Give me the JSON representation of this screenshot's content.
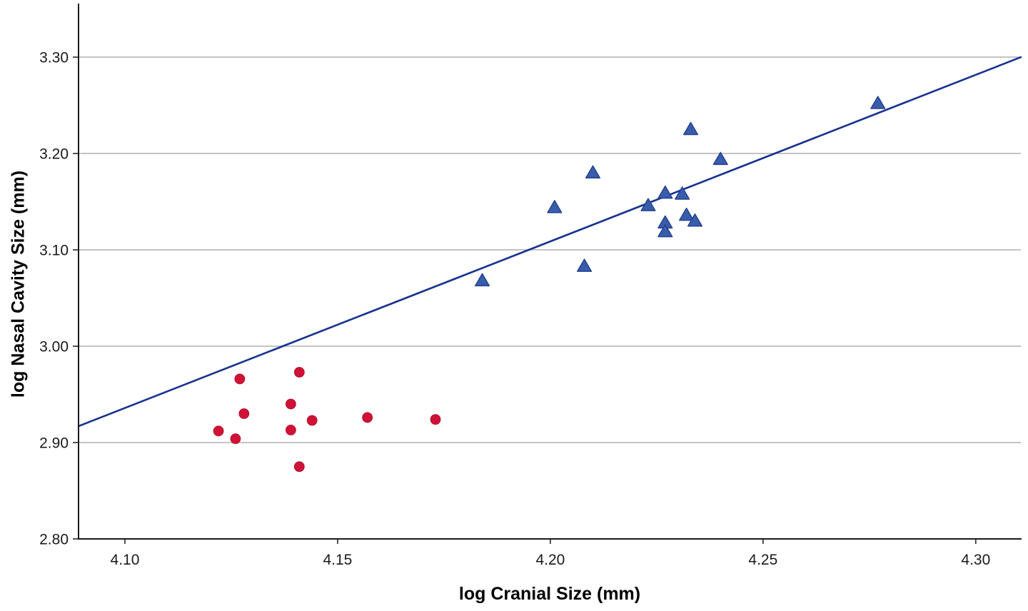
{
  "figure": {
    "background": "#ffffff"
  },
  "chart_data": {
    "type": "scatter",
    "title": "",
    "xlabel": "log Cranial Size (mm)",
    "ylabel": "log Nasal Cavity Size (mm)",
    "xlim": [
      4.0891,
      4.3106
    ],
    "ylim": [
      2.8,
      3.3556
    ],
    "x_ticks": [
      4.1,
      4.15,
      4.2,
      4.25,
      4.3
    ],
    "x_tick_labels": [
      "4.10",
      "4.15",
      "4.20",
      "4.25",
      "4.30"
    ],
    "y_ticks": [
      2.8,
      2.9,
      3.0,
      3.1,
      3.2,
      3.3
    ],
    "y_tick_labels": [
      "2.80",
      "2.90",
      "3.00",
      "3.10",
      "3.20",
      "3.30"
    ],
    "grid": "horizontal-only, light gray, no gridline at 2.80 (axis line)",
    "legend": "none",
    "series": [
      {
        "name": "red-circles",
        "marker": "circle",
        "color": "#cf1237",
        "edge_color": "#b80e2f",
        "points": [
          [
            4.127,
            2.966
          ],
          [
            4.141,
            2.973
          ],
          [
            4.139,
            2.94
          ],
          [
            4.128,
            2.93
          ],
          [
            4.144,
            2.923
          ],
          [
            4.157,
            2.926
          ],
          [
            4.173,
            2.924
          ],
          [
            4.122,
            2.912
          ],
          [
            4.126,
            2.904
          ],
          [
            4.139,
            2.913
          ],
          [
            4.141,
            2.875
          ]
        ]
      },
      {
        "name": "blue-triangles",
        "marker": "triangle",
        "color": "#3a5dab",
        "edge_color": "#24418f",
        "points": [
          [
            4.184,
            3.068
          ],
          [
            4.201,
            3.144
          ],
          [
            4.208,
            3.083
          ],
          [
            4.21,
            3.18
          ],
          [
            4.223,
            3.146
          ],
          [
            4.227,
            3.159
          ],
          [
            4.231,
            3.158
          ],
          [
            4.227,
            3.128
          ],
          [
            4.227,
            3.119
          ],
          [
            4.232,
            3.136
          ],
          [
            4.234,
            3.13
          ],
          [
            4.233,
            3.225
          ],
          [
            4.24,
            3.194
          ],
          [
            4.277,
            3.252
          ]
        ]
      }
    ],
    "trend_line": {
      "color": "#17338e",
      "x": [
        4.0891,
        4.3106
      ],
      "y": [
        2.917,
        3.3
      ]
    },
    "style_colors": {
      "gridline": "#b0b0b0",
      "axis": "#1a1a1a",
      "tick_label": "#1a1a1a",
      "axis_title": "#000000"
    }
  }
}
